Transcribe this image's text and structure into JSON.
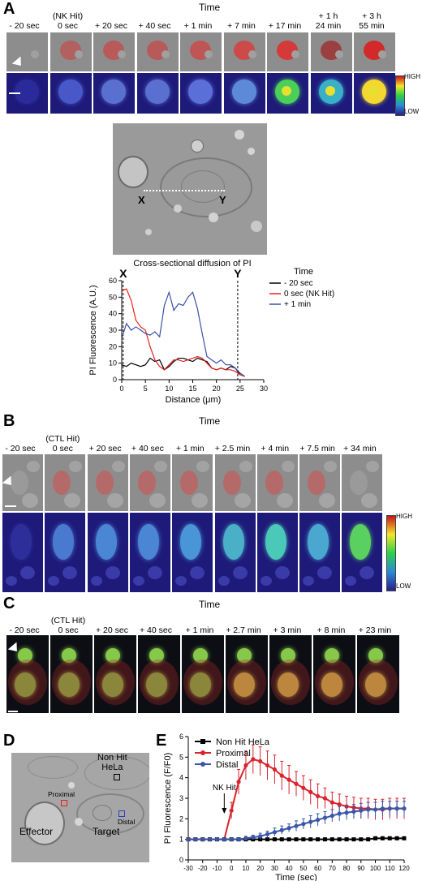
{
  "panel_A": {
    "label": "A",
    "time_title": "Time",
    "timepoints": [
      "- 20 sec",
      "(NK Hit)\n0 sec",
      "+ 20 sec",
      "+ 40 sec",
      "+ 1 min",
      "+ 7 min",
      "+ 17 min",
      "+ 1 h\n24 min",
      "+ 3 h\n55 min"
    ],
    "colorbar": {
      "high": "HIGH",
      "low": "LOW"
    },
    "micro_labels": {
      "x": "X",
      "y": "Y"
    }
  },
  "chart_cross": {
    "title": "Cross-sectional diffusion of PI",
    "xlabel": "Distance (μm)",
    "ylabel": "PI Fluorescence (A.U.)",
    "marker_x": "X",
    "marker_y": "Y",
    "legend_title": "Time"
  },
  "panel_B": {
    "label": "B",
    "time_title": "Time",
    "timepoints": [
      "- 20 sec",
      "(CTL Hit)\n0 sec",
      "+ 20 sec",
      "+ 40 sec",
      "+ 1 min",
      "+ 2.5 min",
      "+ 4 min",
      "+ 7.5 min",
      "+ 34 min"
    ],
    "colorbar": {
      "high": "HIGH",
      "low": "LOW"
    }
  },
  "panel_C": {
    "label": "C",
    "time_title": "Time",
    "timepoints": [
      "- 20 sec",
      "(CTL Hit)\n0 sec",
      "+ 20 sec",
      "+ 40 sec",
      "+ 1 min",
      "+ 2.7 min",
      "+ 3 min",
      "+ 8 min",
      "+ 23 min"
    ]
  },
  "panel_D": {
    "label": "D",
    "labels": {
      "non_hit": "Non Hit\nHeLa",
      "proximal": "Proximal",
      "distal": "Distal",
      "effector": "Effector",
      "target": "Target"
    }
  },
  "panel_E": {
    "label": "E",
    "annotation": "NK Hit"
  },
  "chart_data": [
    {
      "type": "line",
      "title": "Cross-sectional diffusion of PI",
      "xlabel": "Distance (μm)",
      "ylabel": "PI Fluorescence (A.U.)",
      "xlim": [
        0,
        30
      ],
      "ylim": [
        0,
        60
      ],
      "xticks": [
        0,
        5,
        10,
        15,
        20,
        25,
        30
      ],
      "yticks": [
        0,
        10,
        20,
        30,
        40,
        50,
        60
      ],
      "legend_title": "Time",
      "legend_position": "right",
      "markers": [
        {
          "label": "X",
          "x": 0.3
        },
        {
          "label": "Y",
          "x": 24.5
        }
      ],
      "series": [
        {
          "name": "- 20 sec",
          "color": "#000000",
          "x": [
            0,
            1,
            2,
            3,
            4,
            5,
            6,
            7,
            8,
            9,
            10,
            11,
            12,
            13,
            14,
            15,
            16,
            17,
            18,
            19,
            20,
            21,
            22,
            23,
            24,
            25,
            26
          ],
          "y": [
            9,
            8,
            10,
            9,
            8,
            9,
            13,
            11,
            12,
            6,
            8,
            11,
            13,
            13,
            12,
            11,
            13,
            12,
            11,
            7,
            6,
            7,
            6,
            8,
            7,
            3,
            2
          ]
        },
        {
          "name": "0 sec (NK Hit)",
          "color": "#e8201c",
          "x": [
            0,
            1,
            2,
            3,
            4,
            5,
            6,
            7,
            8,
            9,
            10,
            11,
            12,
            13,
            14,
            15,
            16,
            17,
            18,
            19,
            20,
            21,
            22,
            23,
            24,
            25,
            26
          ],
          "y": [
            54,
            55,
            48,
            36,
            32,
            30,
            20,
            12,
            8,
            6,
            9,
            12,
            12,
            11,
            12,
            13,
            14,
            13,
            10,
            7,
            6,
            7,
            6,
            6,
            5,
            3,
            2
          ]
        },
        {
          "name": "+ 1 min",
          "color": "#3a4ea8",
          "x": [
            0,
            1,
            2,
            3,
            4,
            5,
            6,
            7,
            8,
            9,
            10,
            11,
            12,
            13,
            14,
            15,
            16,
            17,
            18,
            19,
            20,
            21,
            22,
            23,
            24,
            25,
            26
          ],
          "y": [
            25,
            34,
            30,
            32,
            30,
            28,
            27,
            29,
            26,
            45,
            53,
            42,
            46,
            45,
            50,
            53,
            43,
            28,
            14,
            12,
            10,
            12,
            9,
            9,
            7,
            4,
            2
          ]
        }
      ]
    },
    {
      "type": "line",
      "title": "",
      "xlabel": "Time (sec)",
      "ylabel": "PI Fluorescence (F/F0)",
      "xlim": [
        -30,
        120
      ],
      "ylim": [
        0,
        6
      ],
      "xticks": [
        -30,
        -20,
        -10,
        0,
        10,
        20,
        30,
        40,
        50,
        60,
        70,
        80,
        90,
        100,
        110,
        120
      ],
      "yticks": [
        0,
        1,
        2,
        3,
        4,
        5,
        6
      ],
      "legend_position": "top-left",
      "annotation": {
        "text": "NK Hit",
        "x": -5
      },
      "series": [
        {
          "name": "Non Hit HeLa",
          "color": "#000000",
          "marker": "square",
          "x": [
            -30,
            -25,
            -20,
            -15,
            -10,
            -5,
            0,
            5,
            10,
            15,
            20,
            25,
            30,
            35,
            40,
            45,
            50,
            55,
            60,
            65,
            70,
            75,
            80,
            85,
            90,
            95,
            100,
            105,
            110,
            115,
            120
          ],
          "y": [
            1,
            1,
            1,
            1,
            1,
            1,
            1,
            1,
            1,
            1,
            1,
            1,
            1,
            1,
            1,
            1,
            1,
            1,
            1,
            1,
            1,
            1,
            1,
            1,
            1,
            1,
            1.05,
            1.05,
            1.05,
            1.05,
            1.05
          ],
          "err": [
            0.05,
            0.05,
            0.05,
            0.05,
            0.05,
            0.05,
            0.05,
            0.05,
            0.05,
            0.05,
            0.05,
            0.05,
            0.05,
            0.05,
            0.05,
            0.05,
            0.05,
            0.05,
            0.05,
            0.05,
            0.05,
            0.05,
            0.05,
            0.05,
            0.05,
            0.05,
            0.08,
            0.08,
            0.08,
            0.08,
            0.08
          ]
        },
        {
          "name": "Proximal",
          "color": "#d9232d",
          "marker": "circle",
          "x": [
            -30,
            -25,
            -20,
            -15,
            -10,
            -5,
            0,
            5,
            10,
            15,
            20,
            25,
            30,
            35,
            40,
            45,
            50,
            55,
            60,
            65,
            70,
            75,
            80,
            85,
            90,
            95,
            100,
            105,
            110,
            115,
            120
          ],
          "y": [
            1,
            1,
            1,
            1,
            1,
            1,
            2.4,
            3.8,
            4.6,
            4.9,
            4.8,
            4.6,
            4.4,
            4.1,
            3.9,
            3.7,
            3.5,
            3.3,
            3.1,
            3.0,
            2.8,
            2.7,
            2.6,
            2.55,
            2.5,
            2.5,
            2.45,
            2.45,
            2.5,
            2.5,
            2.5
          ],
          "err": [
            0.05,
            0.05,
            0.05,
            0.05,
            0.05,
            0.05,
            0.4,
            0.6,
            0.7,
            0.7,
            0.7,
            0.7,
            0.7,
            0.7,
            0.7,
            0.6,
            0.6,
            0.6,
            0.6,
            0.5,
            0.5,
            0.5,
            0.5,
            0.5,
            0.5,
            0.5,
            0.5,
            0.5,
            0.5,
            0.5,
            0.5
          ]
        },
        {
          "name": "Distal",
          "color": "#3a56a8",
          "marker": "circle",
          "x": [
            -30,
            -25,
            -20,
            -15,
            -10,
            -5,
            0,
            5,
            10,
            15,
            20,
            25,
            30,
            35,
            40,
            45,
            50,
            55,
            60,
            65,
            70,
            75,
            80,
            85,
            90,
            95,
            100,
            105,
            110,
            115,
            120
          ],
          "y": [
            1,
            1,
            1,
            1,
            1,
            1,
            1,
            1,
            1.05,
            1.1,
            1.15,
            1.25,
            1.35,
            1.45,
            1.55,
            1.65,
            1.75,
            1.85,
            1.95,
            2.05,
            2.15,
            2.25,
            2.3,
            2.35,
            2.4,
            2.45,
            2.45,
            2.5,
            2.5,
            2.5,
            2.5
          ],
          "err": [
            0.05,
            0.05,
            0.05,
            0.05,
            0.05,
            0.05,
            0.05,
            0.05,
            0.1,
            0.1,
            0.15,
            0.15,
            0.2,
            0.2,
            0.2,
            0.25,
            0.25,
            0.3,
            0.3,
            0.3,
            0.3,
            0.35,
            0.35,
            0.35,
            0.35,
            0.35,
            0.35,
            0.35,
            0.35,
            0.35,
            0.35
          ]
        }
      ]
    }
  ]
}
